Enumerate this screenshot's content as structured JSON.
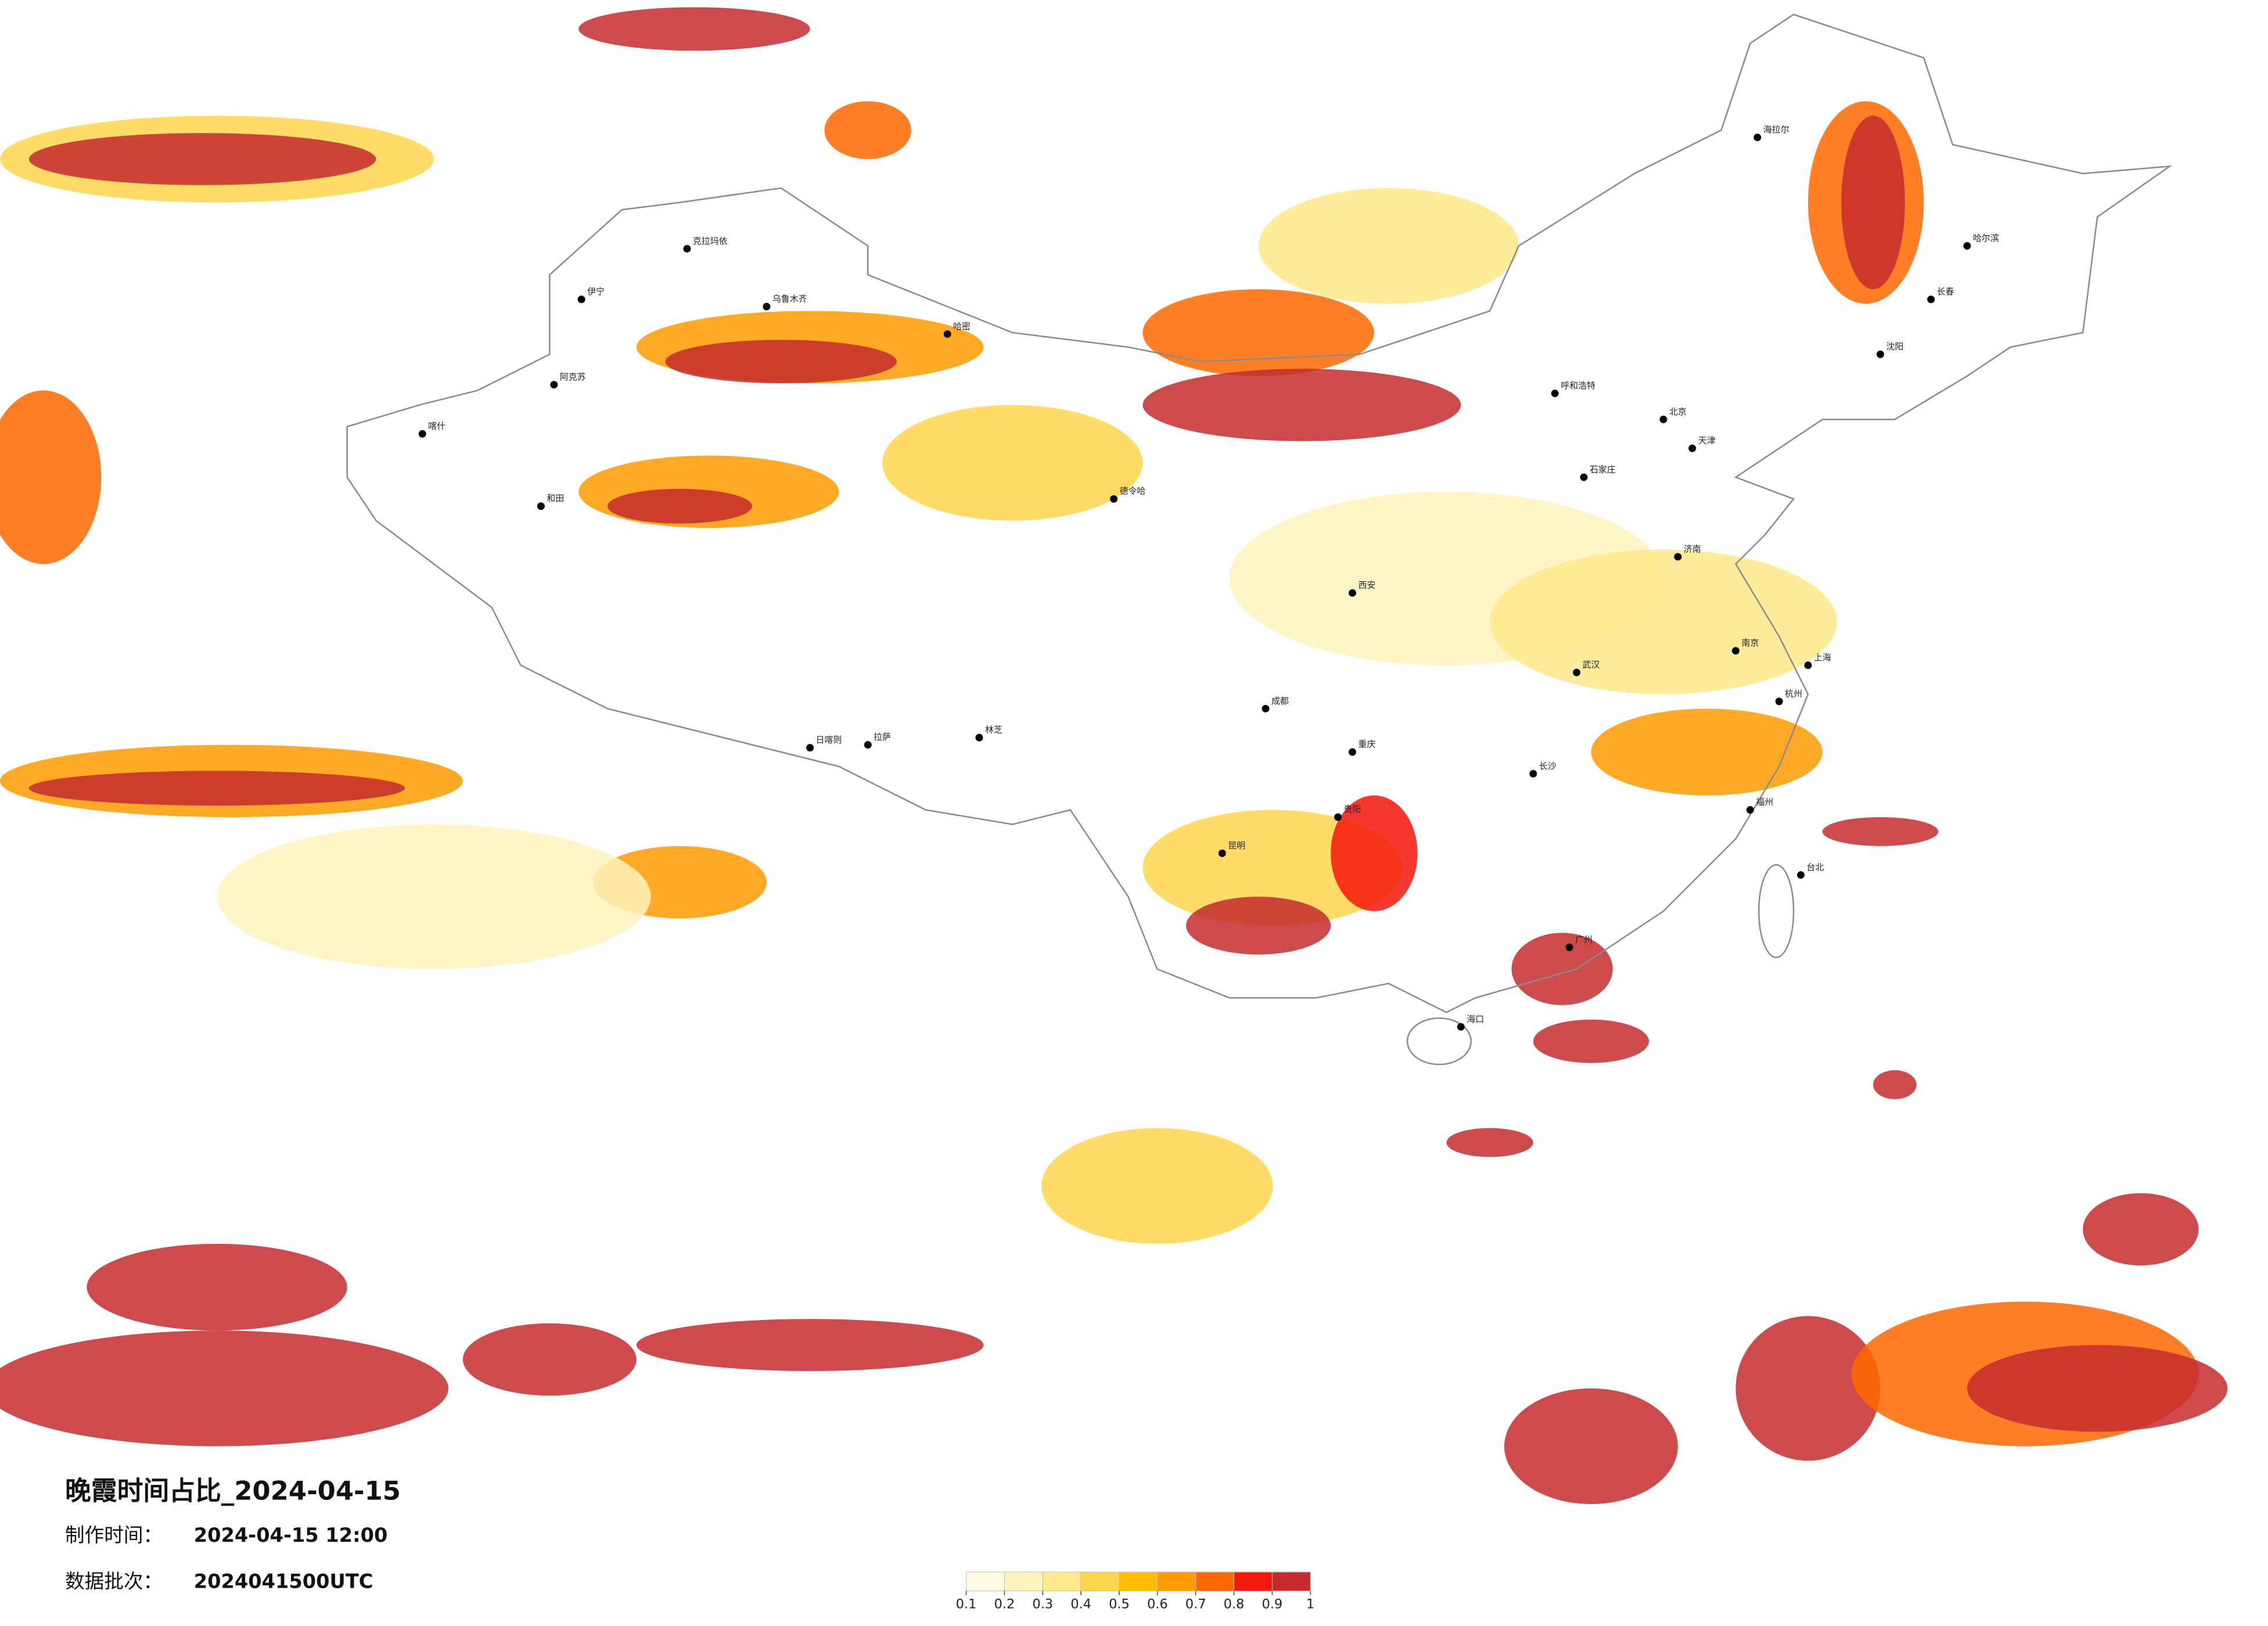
{
  "title": "晚霞时间占比_2024-04-15",
  "made_label": "制作时间：",
  "made_time": "2024-04-15 12:00",
  "batch_label": "数据批次：",
  "batch": "2024041500UTC",
  "legend": {
    "ticks": [
      0.1,
      0.2,
      0.3,
      0.4,
      0.5,
      0.6,
      0.7,
      0.8,
      0.9,
      1
    ],
    "colors": [
      "#fffbe3",
      "#fff3bd",
      "#ffe98a",
      "#ffd64d",
      "#ffbf00",
      "#ff9a00",
      "#ff6800",
      "#f5160c",
      "#c42a2e"
    ]
  },
  "cities": [
    "克拉玛依",
    "伊宁",
    "乌鲁木齐",
    "哈密",
    "阿克苏",
    "喀什",
    "和田",
    "德令哈",
    "拉萨",
    "日喀则",
    "林芝",
    "呼和浩特",
    "北京",
    "天津",
    "石家庄",
    "济南",
    "南京",
    "上海",
    "杭州",
    "福州",
    "广州",
    "海口",
    "长春",
    "哈尔滨",
    "沈阳",
    "西安",
    "成都",
    "重庆",
    "昆明",
    "贵阳",
    "长沙",
    "武汉",
    "台北",
    "海拉尔"
  ]
}
